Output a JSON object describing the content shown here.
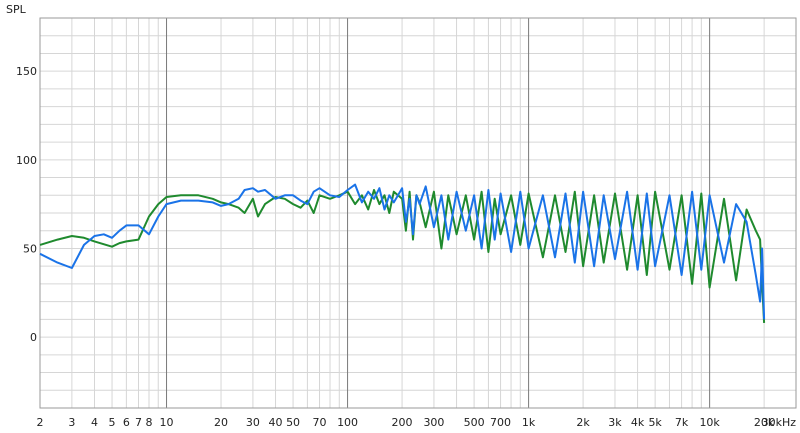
{
  "chart_data": {
    "type": "line",
    "title": "",
    "ylabel": "SPL",
    "xlabel": "",
    "x_scale": "log",
    "xlim": [
      2,
      30000
    ],
    "ylim": [
      -40,
      180
    ],
    "grid": true,
    "x_ticks": [
      {
        "value": 2,
        "label": "2"
      },
      {
        "value": 3,
        "label": "3"
      },
      {
        "value": 4,
        "label": "4"
      },
      {
        "value": 5,
        "label": "5"
      },
      {
        "value": 6,
        "label": "6"
      },
      {
        "value": 7,
        "label": "7"
      },
      {
        "value": 8,
        "label": "8"
      },
      {
        "value": 10,
        "label": "10"
      },
      {
        "value": 20,
        "label": "20"
      },
      {
        "value": 30,
        "label": "30"
      },
      {
        "value": 40,
        "label": "40"
      },
      {
        "value": 50,
        "label": "50"
      },
      {
        "value": 70,
        "label": "70"
      },
      {
        "value": 100,
        "label": "100"
      },
      {
        "value": 200,
        "label": "200"
      },
      {
        "value": 300,
        "label": "300"
      },
      {
        "value": 500,
        "label": "500"
      },
      {
        "value": 700,
        "label": "700"
      },
      {
        "value": 1000,
        "label": "1k"
      },
      {
        "value": 2000,
        "label": "2k"
      },
      {
        "value": 3000,
        "label": "3k"
      },
      {
        "value": 4000,
        "label": "4k"
      },
      {
        "value": 5000,
        "label": "5k"
      },
      {
        "value": 7000,
        "label": "7k"
      },
      {
        "value": 10000,
        "label": "10k"
      },
      {
        "value": 20000,
        "label": "20k"
      },
      {
        "value": 30000,
        "label": "30kHz"
      }
    ],
    "y_ticks": [
      {
        "value": 0,
        "label": "0"
      },
      {
        "value": 50,
        "label": "50"
      },
      {
        "value": 100,
        "label": "100"
      },
      {
        "value": 150,
        "label": "150"
      }
    ],
    "series": [
      {
        "color": "#1f8a2e",
        "x": [
          2,
          2.5,
          3,
          3.5,
          4,
          5,
          5.5,
          6,
          7,
          8,
          9,
          10,
          12,
          15,
          18,
          20,
          22,
          25,
          27,
          30,
          32,
          35,
          40,
          45,
          50,
          55,
          60,
          65,
          70,
          80,
          90,
          100,
          110,
          120,
          130,
          140,
          150,
          160,
          170,
          180,
          200,
          210,
          220,
          230,
          240,
          250,
          270,
          300,
          330,
          360,
          400,
          450,
          500,
          550,
          600,
          650,
          700,
          800,
          900,
          1000,
          1200,
          1400,
          1600,
          1800,
          2000,
          2300,
          2600,
          3000,
          3500,
          4000,
          4500,
          5000,
          6000,
          7000,
          8000,
          9000,
          10000,
          12000,
          14000,
          16000,
          18000,
          19000,
          19500,
          20000
        ],
        "y": [
          52,
          55,
          57,
          56,
          54,
          51,
          53,
          54,
          55,
          68,
          75,
          79,
          80,
          80,
          78,
          76,
          75,
          73,
          70,
          78,
          68,
          75,
          79,
          78,
          75,
          73,
          77,
          70,
          80,
          78,
          80,
          82,
          75,
          80,
          72,
          83,
          75,
          80,
          70,
          82,
          78,
          60,
          82,
          55,
          80,
          76,
          62,
          82,
          50,
          80,
          58,
          80,
          55,
          82,
          48,
          78,
          58,
          80,
          52,
          81,
          45,
          80,
          48,
          82,
          40,
          80,
          42,
          81,
          38,
          80,
          35,
          82,
          38,
          80,
          30,
          81,
          28,
          78,
          32,
          72,
          60,
          55,
          30,
          8
        ]
      },
      {
        "color": "#1a73e8",
        "x": [
          2,
          2.5,
          3,
          3.5,
          4,
          4.5,
          5,
          5.5,
          6,
          7,
          8,
          9,
          10,
          12,
          15,
          18,
          20,
          22,
          25,
          27,
          30,
          32,
          35,
          40,
          45,
          50,
          55,
          60,
          65,
          70,
          80,
          90,
          100,
          110,
          120,
          130,
          140,
          150,
          160,
          170,
          180,
          200,
          210,
          220,
          230,
          240,
          250,
          270,
          300,
          330,
          360,
          400,
          450,
          500,
          550,
          600,
          650,
          700,
          800,
          900,
          1000,
          1200,
          1400,
          1600,
          1800,
          2000,
          2300,
          2600,
          3000,
          3500,
          4000,
          4500,
          5000,
          6000,
          7000,
          8000,
          9000,
          10000,
          12000,
          14000,
          16000,
          18000,
          19000,
          19500,
          20000
        ],
        "y": [
          47,
          42,
          39,
          52,
          57,
          58,
          56,
          60,
          63,
          63,
          58,
          68,
          75,
          77,
          77,
          76,
          74,
          75,
          78,
          83,
          84,
          82,
          83,
          78,
          80,
          80,
          77,
          75,
          82,
          84,
          80,
          79,
          83,
          86,
          76,
          82,
          78,
          84,
          72,
          80,
          76,
          84,
          65,
          78,
          58,
          80,
          75,
          85,
          62,
          80,
          55,
          82,
          60,
          80,
          50,
          83,
          55,
          81,
          48,
          82,
          50,
          80,
          45,
          81,
          42,
          82,
          40,
          80,
          44,
          82,
          38,
          81,
          40,
          80,
          35,
          82,
          38,
          80,
          42,
          75,
          65,
          35,
          20,
          50,
          10
        ]
      }
    ]
  }
}
